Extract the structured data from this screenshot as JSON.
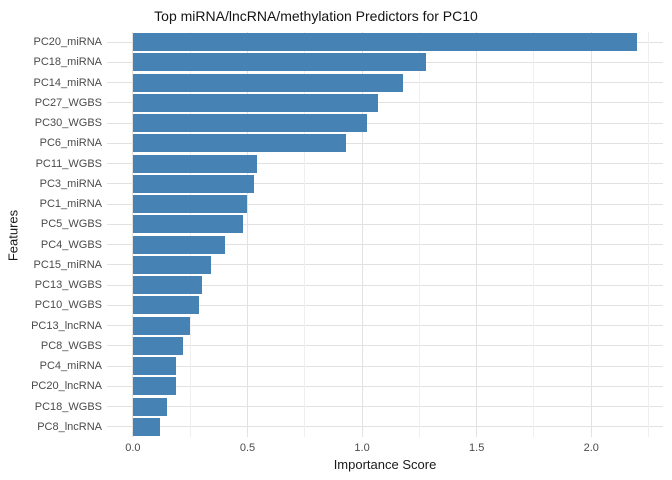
{
  "title": "Top miRNA/lncRNA/methylation Predictors for PC10",
  "chart_data": {
    "type": "bar",
    "orientation": "horizontal",
    "title": "Top miRNA/lncRNA/methylation Predictors for PC10",
    "xlabel": "Importance Score",
    "ylabel": "Features",
    "categories": [
      "PC20_miRNA",
      "PC18_miRNA",
      "PC14_miRNA",
      "PC27_WGBS",
      "PC30_WGBS",
      "PC6_miRNA",
      "PC11_WGBS",
      "PC3_miRNA",
      "PC1_miRNA",
      "PC5_WGBS",
      "PC4_WGBS",
      "PC15_miRNA",
      "PC13_WGBS",
      "PC10_WGBS",
      "PC13_lncRNA",
      "PC8_WGBS",
      "PC4_miRNA",
      "PC20_lncRNA",
      "PC18_WGBS",
      "PC8_lncRNA"
    ],
    "values": [
      2.2,
      1.28,
      1.18,
      1.07,
      1.02,
      0.93,
      0.54,
      0.53,
      0.5,
      0.48,
      0.4,
      0.34,
      0.3,
      0.29,
      0.25,
      0.22,
      0.19,
      0.19,
      0.15,
      0.12
    ],
    "xlim": [
      -0.113,
      2.313
    ],
    "x_major_ticks": [
      0,
      0.5,
      1,
      1.5,
      2
    ],
    "x_tick_labels": [
      "0.0",
      "0.5",
      "1.0",
      "1.5",
      "2.0"
    ],
    "x_minor_ticks": [
      0.25,
      0.75,
      1.25,
      1.75,
      2.25
    ],
    "grid": "on",
    "legend": "none",
    "bar_color": "#4682B4",
    "grid_major_color": "#E2E2E2",
    "grid_minor_color": "#EFEFEF",
    "background_color": "#FFFFFF",
    "axis_text_color": "#4A4A4A",
    "title_color": "#141414"
  }
}
